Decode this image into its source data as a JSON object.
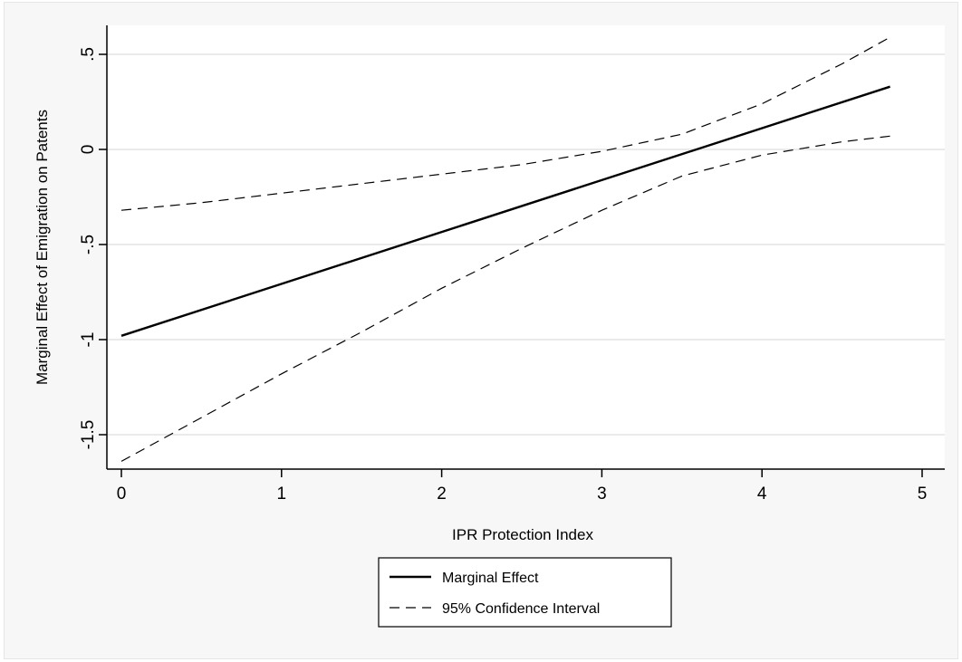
{
  "chart_data": {
    "type": "line",
    "title": "",
    "xlabel": "IPR Protection Index",
    "ylabel": "Marginal Effect of Emigration on Patents",
    "xlim": [
      0,
      5
    ],
    "ylim": [
      -1.7,
      0.65
    ],
    "x_ticks": [
      0,
      1,
      2,
      3,
      4,
      5
    ],
    "x_tick_labels": [
      "0",
      "1",
      "2",
      "3",
      "4",
      "5"
    ],
    "y_ticks": [
      -1.5,
      -1,
      -0.5,
      0,
      0.5
    ],
    "y_tick_labels": [
      "-1.5",
      "-1",
      "-.5",
      "0",
      ".5"
    ],
    "grid": "horizontal",
    "legend_position": "bottom",
    "series": [
      {
        "name": "Marginal Effect",
        "style": "solid",
        "color": "#000000",
        "x": [
          0,
          4.8
        ],
        "y": [
          -0.98,
          0.33
        ]
      },
      {
        "name": "95% Confidence Interval",
        "style": "dashed",
        "color": "#000000",
        "x": [
          0,
          0.5,
          1.0,
          1.5,
          2.0,
          2.5,
          3.0,
          3.5,
          4.0,
          4.5,
          4.8
        ],
        "y": [
          -0.32,
          -0.28,
          -0.23,
          -0.18,
          -0.13,
          -0.08,
          -0.01,
          0.08,
          0.24,
          0.45,
          0.59
        ]
      },
      {
        "name": "",
        "style": "dashed",
        "color": "#000000",
        "x": [
          0,
          0.5,
          1.0,
          1.5,
          2.0,
          2.5,
          3.0,
          3.5,
          4.0,
          4.5,
          4.8
        ],
        "y": [
          -1.64,
          -1.41,
          -1.18,
          -0.96,
          -0.73,
          -0.52,
          -0.32,
          -0.14,
          -0.03,
          0.04,
          0.07
        ]
      }
    ],
    "legend": [
      {
        "label": "Marginal Effect",
        "style": "solid"
      },
      {
        "label": "95% Confidence Interval",
        "style": "dashed"
      }
    ]
  }
}
